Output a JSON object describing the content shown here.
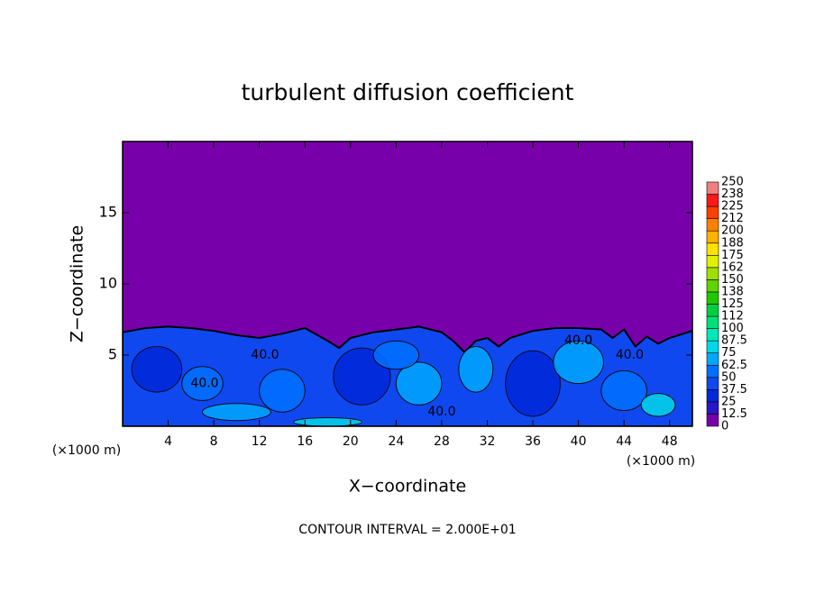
{
  "chart_data": {
    "type": "contour",
    "title": "turbulent diffusion coefficient",
    "xlabel": "X−coordinate",
    "ylabel": "Z−coordinate",
    "x_unit_label": "(×1000 m)",
    "footer": "CONTOUR INTERVAL = 2.000E+01",
    "contour_label": "40.0",
    "xlim": [
      0,
      50
    ],
    "ylim": [
      0,
      20
    ],
    "xticks": [
      4,
      8,
      12,
      16,
      20,
      24,
      28,
      32,
      36,
      40,
      44,
      48
    ],
    "yticks": [
      5,
      10,
      15
    ],
    "colorbar_ticks": [
      0,
      12.5,
      25,
      37.5,
      50,
      62.5,
      75,
      87.5,
      100,
      {
        "value": 112.5,
        "label": "112"
      },
      125,
      {
        "value": 137.5,
        "label": "138"
      },
      150,
      {
        "value": 162.5,
        "label": "162"
      },
      175,
      {
        "value": 187.5,
        "label": "188"
      },
      200,
      {
        "value": 212.5,
        "label": "212"
      },
      225,
      {
        "value": 237.5,
        "label": "238"
      },
      250
    ],
    "colors": [
      "#7700aa",
      "#2818c8",
      "#0028d8",
      "#1048f0",
      "#0070ff",
      "#00a8ff",
      "#00d8e8",
      "#00e8b8",
      "#00e078",
      "#00d040",
      "#20c800",
      "#60d400",
      "#a0e000",
      "#e0f000",
      "#ffe000",
      "#ffb000",
      "#ff8000",
      "#ff4000",
      "#ff1818",
      "#f08080"
    ]
  }
}
